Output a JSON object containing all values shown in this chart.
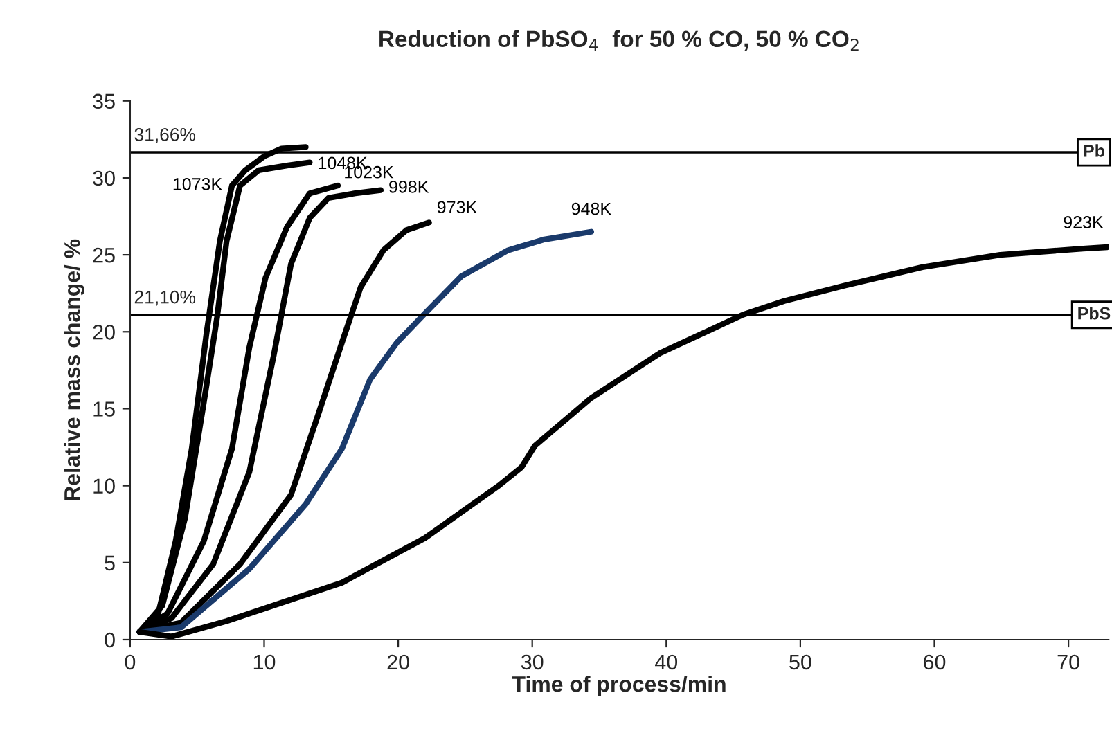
{
  "chart_data": {
    "type": "line",
    "title": "Reduction of PbSO$_{4}$  for 50 % CO, 50 % CO$_{2}$",
    "xlabel": "Time of process/min",
    "ylabel": "Relative mass change/ %",
    "xlim": [
      0,
      73
    ],
    "xticks": [
      0,
      10,
      20,
      30,
      40,
      50,
      60,
      70
    ],
    "ylim": [
      0,
      35
    ],
    "yticks": [
      0,
      5,
      10,
      15,
      20,
      25,
      30,
      35
    ],
    "grid": false,
    "legend": false,
    "line_style": "solid",
    "marker": "none",
    "series": [
      {
        "name": "1073K",
        "color": "#000000",
        "x": [
          0.7,
          2.1,
          3.4,
          4.6,
          5.7,
          6.7,
          7.6,
          8.6,
          10.0,
          11.3,
          13.1
        ],
        "values": [
          0.5,
          1.7,
          6.4,
          12.4,
          19.9,
          25.9,
          29.5,
          30.5,
          31.4,
          31.9,
          32.0
        ]
      },
      {
        "name": "1048K",
        "color": "#000000",
        "x": [
          0.7,
          2.4,
          4.1,
          5.5,
          6.5,
          7.2,
          8.2,
          9.6,
          11.7,
          13.4
        ],
        "values": [
          0.5,
          2.2,
          7.9,
          15.4,
          21.0,
          25.9,
          29.5,
          30.5,
          30.8,
          31.0
        ]
      },
      {
        "name": "1023K",
        "color": "#000000",
        "x": [
          0.7,
          2.8,
          5.5,
          7.6,
          8.9,
          10.1,
          11.7,
          13.4,
          15.5
        ],
        "values": [
          0.5,
          1.7,
          6.4,
          12.4,
          19.0,
          23.5,
          26.8,
          29.0,
          29.5
        ]
      },
      {
        "name": "998K",
        "color": "#000000",
        "x": [
          0.7,
          3.1,
          6.2,
          8.9,
          10.7,
          12.0,
          13.4,
          14.8,
          16.8,
          18.7
        ],
        "values": [
          0.5,
          1.4,
          4.9,
          10.9,
          18.4,
          24.4,
          27.4,
          28.7,
          29.0,
          29.2
        ]
      },
      {
        "name": "973K",
        "color": "#000000",
        "x": [
          0.7,
          3.8,
          8.2,
          12.0,
          14.1,
          15.8,
          17.2,
          18.9,
          20.6,
          22.3
        ],
        "values": [
          0.5,
          1.1,
          4.9,
          9.4,
          14.8,
          19.3,
          22.9,
          25.3,
          26.6,
          27.1
        ]
      },
      {
        "name": "948K",
        "color": "#1a3a6b",
        "x": [
          0.7,
          3.8,
          8.9,
          13.1,
          15.8,
          17.9,
          19.9,
          22.0,
          24.7,
          28.2,
          30.9,
          34.4
        ],
        "values": [
          0.5,
          0.8,
          4.6,
          8.8,
          12.4,
          16.9,
          19.3,
          21.2,
          23.6,
          25.3,
          26.0,
          26.5
        ]
      },
      {
        "name": "923K",
        "color": "#000000",
        "x": [
          0.7,
          3.1,
          7.2,
          15.8,
          22.0,
          27.5,
          29.2,
          30.2,
          34.4,
          39.5,
          45.7,
          48.8,
          53.3,
          59.1,
          64.9,
          71.1,
          72.9
        ],
        "values": [
          0.5,
          0.2,
          1.2,
          3.7,
          6.6,
          10.0,
          11.2,
          12.6,
          15.7,
          18.6,
          21.1,
          22.0,
          23.0,
          24.2,
          25.0,
          25.4,
          25.5
        ]
      }
    ],
    "ref_lines": [
      {
        "axis": "y",
        "value": 31.66,
        "label": "Pb",
        "color": "#000000"
      },
      {
        "axis": "y",
        "value": 21.1,
        "label": "PbS",
        "color": "#000000"
      }
    ],
    "annotations": [
      "31,66%",
      "21,10%"
    ]
  }
}
